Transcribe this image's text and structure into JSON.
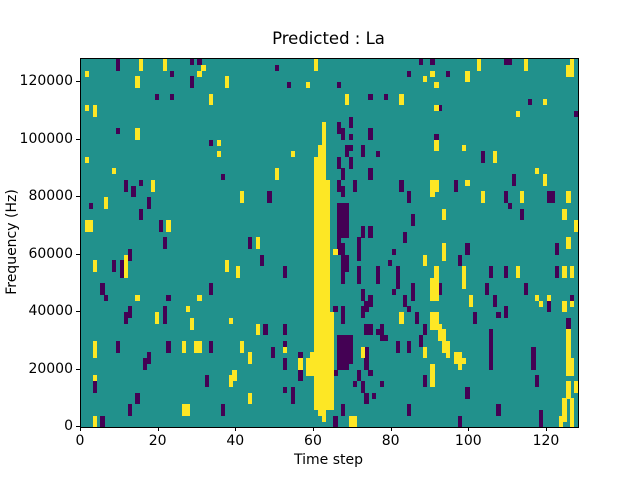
{
  "figure": {
    "title": "Predicted : La"
  },
  "chart_data": {
    "type": "heatmap",
    "title": "Predicted : La",
    "xlabel": "Time step",
    "ylabel": "Frequency (Hz)",
    "x_ticks": [
      0,
      20,
      40,
      60,
      80,
      100,
      120
    ],
    "y_ticks": [
      0,
      20000,
      40000,
      60000,
      80000,
      100000,
      120000
    ],
    "x_range": [
      0,
      128
    ],
    "y_range": [
      0,
      128000
    ],
    "grid": {
      "cols": 128,
      "rows": 64
    },
    "legend": "none",
    "colormap": "viridis",
    "colors": {
      "low": "#440154",
      "mid": "#21918c",
      "high": "#fde725",
      "axis": "#000000",
      "background": "#ffffff"
    },
    "default_value": "mid",
    "high_cells": [
      [
        62,
        11,
        52
      ],
      [
        61,
        15,
        47
      ],
      [
        60,
        17,
        44
      ],
      [
        63,
        21,
        40
      ],
      [
        64,
        44,
        17
      ],
      [
        59,
        51,
        4
      ],
      [
        58,
        52,
        3
      ],
      [
        60,
        0,
        2
      ],
      [
        1,
        2,
        1
      ],
      [
        15,
        0,
        2
      ],
      [
        21,
        0,
        2
      ],
      [
        31,
        1,
        1
      ],
      [
        30,
        2,
        1
      ],
      [
        14,
        3,
        2
      ],
      [
        37,
        3,
        2
      ],
      [
        33,
        6,
        2
      ],
      [
        1,
        8,
        1
      ],
      [
        3,
        8,
        2
      ],
      [
        14,
        12,
        2
      ],
      [
        35,
        14,
        1
      ],
      [
        35,
        16,
        1
      ],
      [
        1,
        17,
        1
      ],
      [
        8,
        19,
        1
      ],
      [
        18,
        21,
        2
      ],
      [
        58,
        4,
        1
      ],
      [
        54,
        16,
        1
      ],
      [
        50,
        19,
        2
      ],
      [
        68,
        6,
        2
      ],
      [
        82,
        6,
        2
      ],
      [
        90,
        2,
        1
      ],
      [
        88,
        3,
        1
      ],
      [
        99,
        2,
        2
      ],
      [
        102,
        0,
        2
      ],
      [
        114,
        0,
        2
      ],
      [
        125,
        1,
        2
      ],
      [
        126,
        0,
        3
      ],
      [
        91,
        4,
        1
      ],
      [
        91,
        8,
        1
      ],
      [
        119,
        7,
        1
      ],
      [
        112,
        9,
        1
      ],
      [
        91,
        14,
        2
      ],
      [
        98,
        15,
        1
      ],
      [
        106,
        16,
        2
      ],
      [
        117,
        19,
        1
      ],
      [
        119,
        20,
        2
      ],
      [
        99,
        21,
        1
      ],
      [
        41,
        23,
        2
      ],
      [
        6,
        24,
        2
      ],
      [
        1,
        28,
        2
      ],
      [
        2,
        28,
        2
      ],
      [
        22,
        28,
        2
      ],
      [
        11,
        34,
        4
      ],
      [
        3,
        35,
        2
      ],
      [
        37,
        35,
        2
      ],
      [
        40,
        36,
        2
      ],
      [
        14,
        41,
        1
      ],
      [
        30,
        41,
        1
      ],
      [
        45,
        31,
        2
      ],
      [
        65,
        33,
        1
      ],
      [
        72,
        50,
        2
      ],
      [
        82,
        44,
        2
      ],
      [
        88,
        34,
        2
      ],
      [
        88,
        50,
        2
      ],
      [
        45,
        46,
        2
      ],
      [
        52,
        50,
        1
      ],
      [
        56,
        52,
        2
      ],
      [
        90,
        21,
        3
      ],
      [
        91,
        21,
        2
      ],
      [
        103,
        23,
        2
      ],
      [
        113,
        23,
        2
      ],
      [
        125,
        23,
        2
      ],
      [
        93,
        26,
        2
      ],
      [
        124,
        26,
        2
      ],
      [
        127,
        28,
        2
      ],
      [
        93,
        32,
        3
      ],
      [
        125,
        31,
        2
      ],
      [
        98,
        36,
        2
      ],
      [
        112,
        36,
        2
      ],
      [
        124,
        36,
        2
      ],
      [
        126,
        36,
        2
      ],
      [
        91,
        36,
        3
      ],
      [
        98,
        38,
        2
      ],
      [
        100,
        41,
        2
      ],
      [
        117,
        41,
        1
      ],
      [
        120,
        41,
        1
      ],
      [
        19,
        44,
        2
      ],
      [
        27,
        43,
        1
      ],
      [
        28,
        45,
        2
      ],
      [
        38,
        45,
        1
      ],
      [
        3,
        49,
        3
      ],
      [
        26,
        49,
        2
      ],
      [
        29,
        49,
        2
      ],
      [
        30,
        49,
        2
      ],
      [
        41,
        49,
        2
      ],
      [
        43,
        51,
        2
      ],
      [
        39,
        54,
        2
      ],
      [
        38,
        55,
        2
      ],
      [
        3,
        55,
        1
      ],
      [
        43,
        58,
        2
      ],
      [
        26,
        60,
        2
      ],
      [
        27,
        60,
        2
      ],
      [
        3,
        62,
        2
      ],
      [
        118,
        42,
        1
      ],
      [
        124,
        42,
        2
      ],
      [
        126,
        42,
        1
      ],
      [
        90,
        38,
        1
      ],
      [
        90,
        39,
        3
      ],
      [
        91,
        39,
        3
      ],
      [
        90,
        44,
        3
      ],
      [
        91,
        44,
        3
      ],
      [
        92,
        46,
        3
      ],
      [
        93,
        47,
        2
      ],
      [
        93,
        49,
        2
      ],
      [
        94,
        49,
        3
      ],
      [
        96,
        51,
        2
      ],
      [
        97,
        51,
        3
      ],
      [
        98,
        52,
        1
      ],
      [
        90,
        53,
        4
      ],
      [
        125,
        47,
        8
      ],
      [
        126,
        52,
        3
      ],
      [
        125,
        56,
        3
      ],
      [
        126,
        59,
        3
      ],
      [
        127,
        56,
        2
      ],
      [
        124,
        59,
        4
      ],
      [
        123,
        62,
        2
      ],
      [
        126,
        62,
        2
      ],
      [
        69,
        62,
        2
      ],
      [
        70,
        62,
        2
      ]
    ],
    "low_cells": [
      [
        9,
        0,
        2
      ],
      [
        23,
        2,
        1
      ],
      [
        28,
        0,
        1
      ],
      [
        30,
        0,
        1
      ],
      [
        28,
        3,
        2
      ],
      [
        19,
        6,
        1
      ],
      [
        23,
        6,
        1
      ],
      [
        9,
        12,
        1
      ],
      [
        33,
        14,
        1
      ],
      [
        36,
        20,
        1
      ],
      [
        50,
        1,
        1
      ],
      [
        53,
        4,
        1
      ],
      [
        66,
        4,
        1
      ],
      [
        74,
        6,
        1
      ],
      [
        78,
        6,
        1
      ],
      [
        87,
        0,
        1
      ],
      [
        90,
        0,
        1
      ],
      [
        109,
        0,
        1
      ],
      [
        110,
        0,
        1
      ],
      [
        84,
        2,
        1
      ],
      [
        94,
        2,
        1
      ],
      [
        92,
        8,
        1
      ],
      [
        115,
        7,
        1
      ],
      [
        127,
        9,
        1
      ],
      [
        91,
        13,
        2
      ],
      [
        103,
        16,
        2
      ],
      [
        111,
        20,
        2
      ],
      [
        69,
        10,
        2
      ],
      [
        66,
        11,
        2
      ],
      [
        67,
        12,
        2
      ],
      [
        69,
        13,
        1
      ],
      [
        68,
        15,
        2
      ],
      [
        69,
        15,
        1
      ],
      [
        72,
        15,
        2
      ],
      [
        74,
        12,
        2
      ],
      [
        66,
        17,
        2
      ],
      [
        69,
        17,
        2
      ],
      [
        76,
        16,
        1
      ],
      [
        67,
        19,
        2
      ],
      [
        74,
        19,
        2
      ],
      [
        66,
        21,
        2
      ],
      [
        67,
        22,
        2
      ],
      [
        70,
        21,
        2
      ],
      [
        66,
        25,
        6
      ],
      [
        67,
        25,
        6
      ],
      [
        68,
        25,
        6
      ],
      [
        66,
        31,
        3
      ],
      [
        67,
        32,
        4
      ],
      [
        68,
        34,
        3
      ],
      [
        67,
        36,
        3
      ],
      [
        72,
        29,
        2
      ],
      [
        74,
        29,
        2
      ],
      [
        71,
        31,
        4
      ],
      [
        71,
        36,
        3
      ],
      [
        76,
        36,
        3
      ],
      [
        80,
        33,
        1
      ],
      [
        79,
        35,
        1
      ],
      [
        81,
        36,
        2
      ],
      [
        85,
        27,
        2
      ],
      [
        82,
        21,
        2
      ],
      [
        84,
        23,
        2
      ],
      [
        83,
        30,
        2
      ],
      [
        11,
        21,
        2
      ],
      [
        15,
        21,
        1
      ],
      [
        13,
        22,
        2
      ],
      [
        2,
        25,
        1
      ],
      [
        17,
        24,
        2
      ],
      [
        15,
        26,
        2
      ],
      [
        20,
        28,
        2
      ],
      [
        21,
        31,
        2
      ],
      [
        12,
        33,
        2
      ],
      [
        8,
        35,
        2
      ],
      [
        10,
        35,
        3
      ],
      [
        33,
        39,
        2
      ],
      [
        5,
        39,
        2
      ],
      [
        6,
        41,
        1
      ],
      [
        22,
        41,
        1
      ],
      [
        43,
        31,
        2
      ],
      [
        48,
        23,
        2
      ],
      [
        46,
        34,
        2
      ],
      [
        52,
        36,
        2
      ],
      [
        96,
        21,
        2
      ],
      [
        109,
        23,
        2
      ],
      [
        110,
        25,
        1
      ],
      [
        120,
        23,
        2
      ],
      [
        121,
        23,
        2
      ],
      [
        113,
        26,
        2
      ],
      [
        99,
        32,
        2
      ],
      [
        122,
        32,
        2
      ],
      [
        97,
        34,
        2
      ],
      [
        105,
        36,
        2
      ],
      [
        109,
        36,
        2
      ],
      [
        122,
        36,
        2
      ],
      [
        92,
        39,
        2
      ],
      [
        104,
        39,
        2
      ],
      [
        114,
        39,
        2
      ],
      [
        106,
        41,
        2
      ],
      [
        126,
        41,
        1
      ],
      [
        85,
        39,
        3
      ],
      [
        83,
        41,
        2
      ],
      [
        81,
        38,
        2
      ],
      [
        80,
        40,
        1
      ],
      [
        65,
        43,
        1
      ],
      [
        67,
        43,
        3
      ],
      [
        72,
        40,
        2
      ],
      [
        72,
        43,
        2
      ],
      [
        73,
        42,
        2
      ],
      [
        74,
        41,
        2
      ],
      [
        73,
        46,
        2
      ],
      [
        74,
        46,
        2
      ],
      [
        77,
        46,
        3
      ],
      [
        78,
        48,
        1
      ],
      [
        66,
        48,
        6
      ],
      [
        67,
        48,
        6
      ],
      [
        68,
        48,
        6
      ],
      [
        69,
        48,
        5
      ],
      [
        76,
        47,
        1
      ],
      [
        73,
        50,
        2
      ],
      [
        73,
        52,
        2
      ],
      [
        71,
        54,
        2
      ],
      [
        74,
        54,
        1
      ],
      [
        65,
        54,
        1
      ],
      [
        70,
        56,
        1
      ],
      [
        72,
        56,
        2
      ],
      [
        77,
        56,
        1
      ],
      [
        73,
        58,
        2
      ],
      [
        75,
        58,
        1
      ],
      [
        67,
        60,
        2
      ],
      [
        65,
        62,
        2
      ],
      [
        70,
        63,
        1
      ],
      [
        12,
        43,
        2
      ],
      [
        11,
        44,
        2
      ],
      [
        21,
        43,
        3
      ],
      [
        9,
        49,
        2
      ],
      [
        22,
        49,
        2
      ],
      [
        33,
        49,
        2
      ],
      [
        17,
        51,
        2
      ],
      [
        16,
        52,
        2
      ],
      [
        3,
        56,
        2
      ],
      [
        32,
        55,
        2
      ],
      [
        14,
        58,
        2
      ],
      [
        12,
        60,
        2
      ],
      [
        36,
        60,
        2
      ],
      [
        5,
        62,
        2
      ],
      [
        47,
        46,
        2
      ],
      [
        52,
        46,
        2
      ],
      [
        52,
        49,
        1
      ],
      [
        49,
        50,
        2
      ],
      [
        52,
        52,
        2
      ],
      [
        56,
        51,
        2
      ],
      [
        56,
        54,
        2
      ],
      [
        54,
        57,
        1
      ],
      [
        52,
        57,
        1
      ],
      [
        54,
        58,
        2
      ],
      [
        87,
        48,
        2
      ],
      [
        84,
        49,
        2
      ],
      [
        81,
        49,
        2
      ],
      [
        86,
        44,
        2
      ],
      [
        84,
        43,
        1
      ],
      [
        88,
        46,
        2
      ],
      [
        88,
        55,
        2
      ],
      [
        84,
        60,
        2
      ],
      [
        120,
        42,
        2
      ],
      [
        101,
        44,
        2
      ],
      [
        107,
        44,
        1
      ],
      [
        109,
        43,
        2
      ],
      [
        125,
        45,
        2
      ],
      [
        105,
        47,
        4
      ],
      [
        105,
        51,
        3
      ],
      [
        116,
        50,
        4
      ],
      [
        117,
        55,
        2
      ],
      [
        99,
        57,
        2
      ],
      [
        107,
        60,
        2
      ],
      [
        97,
        62,
        2
      ],
      [
        118,
        61,
        3
      ]
    ]
  }
}
